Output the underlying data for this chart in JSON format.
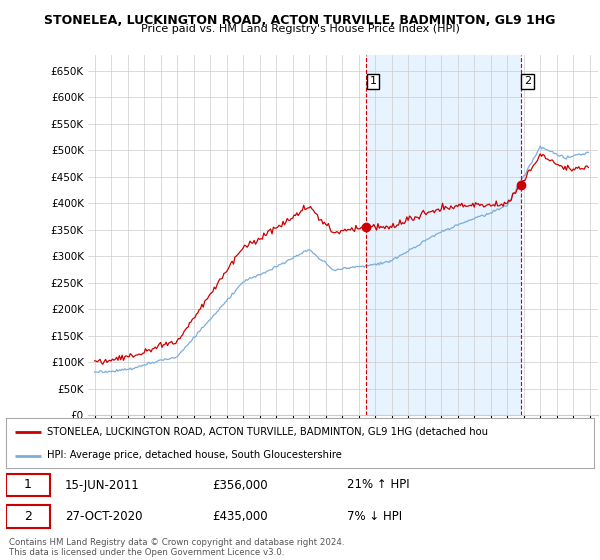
{
  "title1": "STONELEA, LUCKINGTON ROAD, ACTON TURVILLE, BADMINTON, GL9 1HG",
  "title2": "Price paid vs. HM Land Registry's House Price Index (HPI)",
  "legend_line1": "STONELEA, LUCKINGTON ROAD, ACTON TURVILLE, BADMINTON, GL9 1HG (detached hou",
  "legend_line2": "HPI: Average price, detached house, South Gloucestershire",
  "sale1_date": "15-JUN-2011",
  "sale1_price": "£356,000",
  "sale1_hpi": "21% ↑ HPI",
  "sale2_date": "27-OCT-2020",
  "sale2_price": "£435,000",
  "sale2_hpi": "7% ↓ HPI",
  "footer": "Contains HM Land Registry data © Crown copyright and database right 2024.\nThis data is licensed under the Open Government Licence v3.0.",
  "red_color": "#cc0000",
  "blue_color": "#7aaedb",
  "shade_color": "#ddeeff",
  "bg_color": "#ffffff",
  "grid_color": "#cccccc",
  "sale1_year": 2011.46,
  "sale1_price_val": 356000,
  "sale2_year": 2020.83,
  "sale2_price_val": 435000
}
